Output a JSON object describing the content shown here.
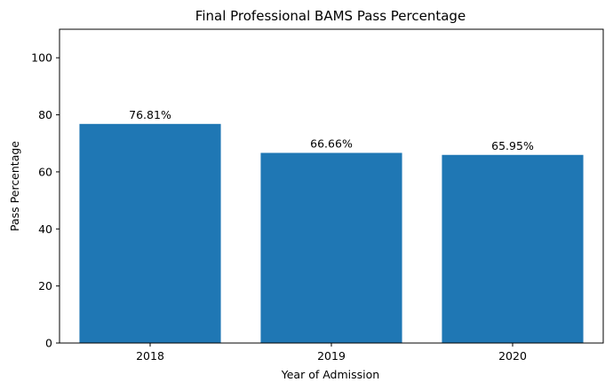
{
  "chart_data": {
    "type": "bar",
    "title": "Final Professional BAMS Pass Percentage",
    "xlabel": "Year of Admission",
    "ylabel": "Pass Percentage",
    "categories": [
      "2018",
      "2019",
      "2020"
    ],
    "values": [
      76.81,
      66.66,
      65.95
    ],
    "value_labels": [
      "76.81%",
      "66.66%",
      "65.95%"
    ],
    "ylim": [
      0,
      110
    ],
    "yticks": [
      0,
      20,
      40,
      60,
      80,
      100
    ],
    "bar_color": "#1f77b4",
    "grid": false
  }
}
